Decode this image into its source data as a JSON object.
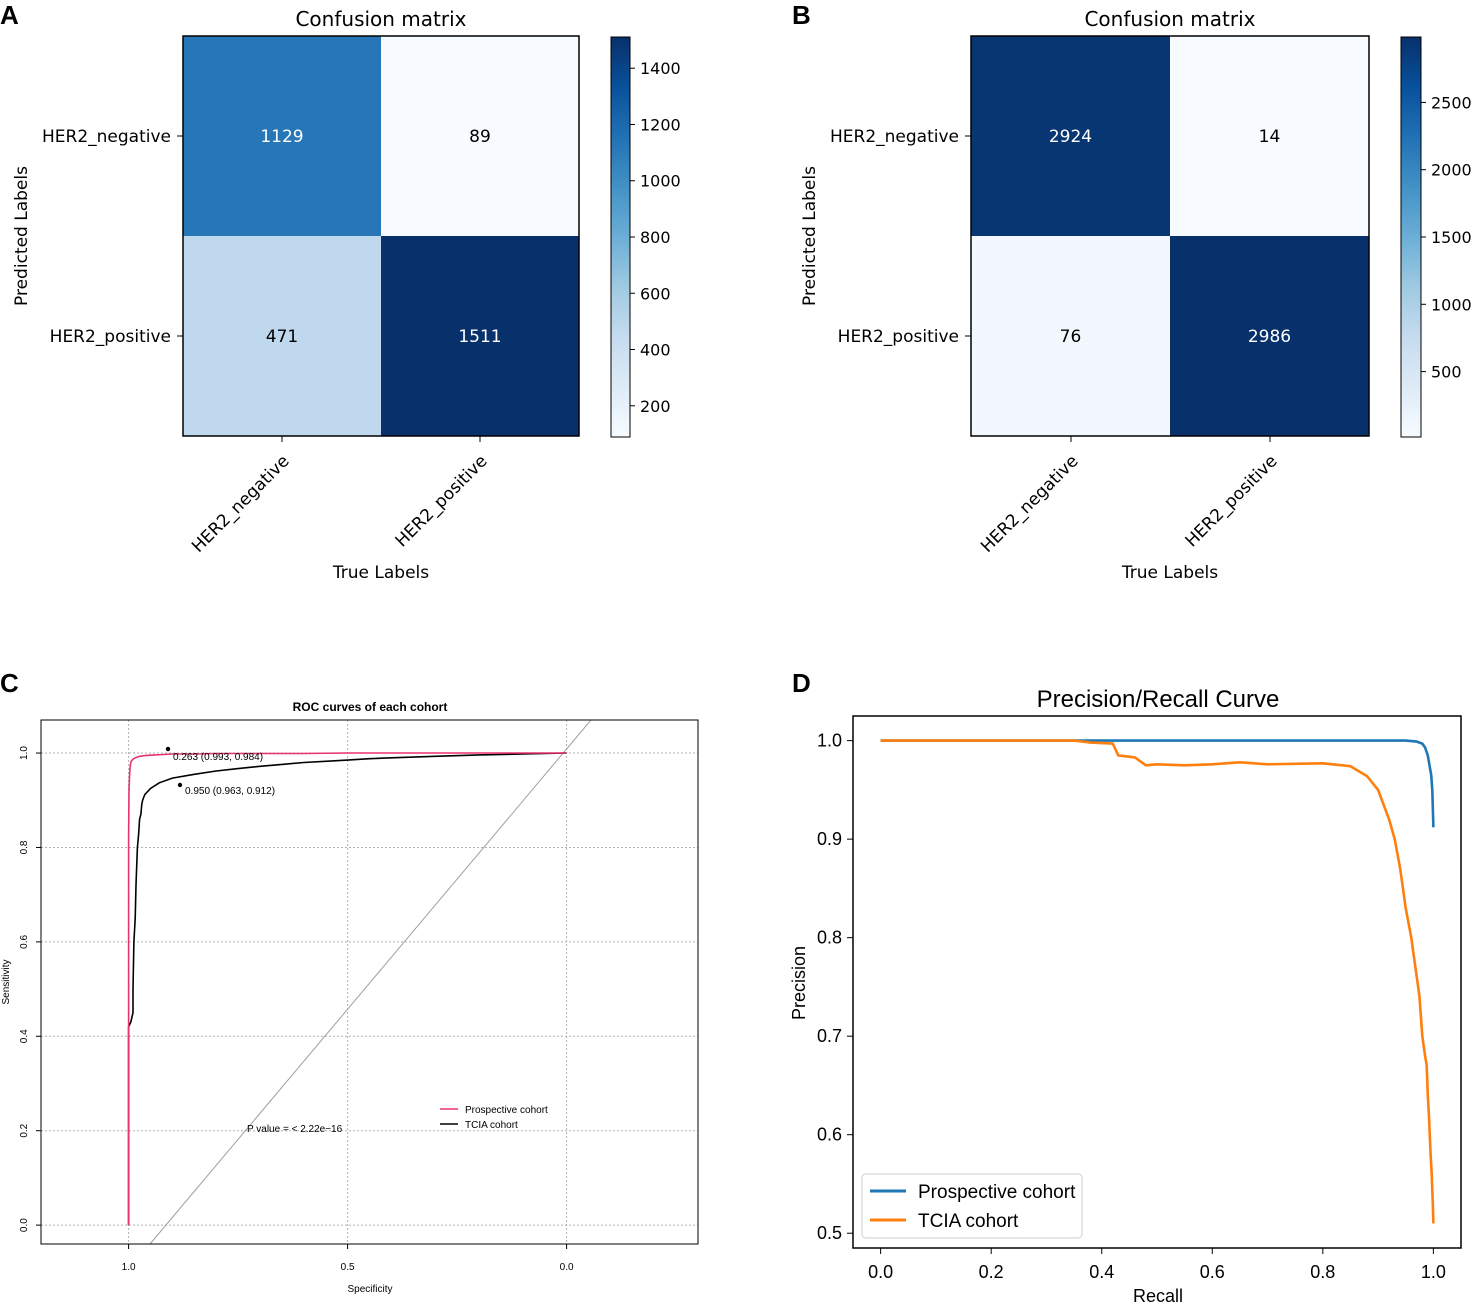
{
  "panels": {
    "A": "A",
    "B": "B",
    "C": "C",
    "D": "D"
  },
  "colors": {
    "blues_low": "#f7fbff",
    "blues_high": "#08306b",
    "prospective_roc": "#e8336d",
    "tcia_roc": "#000000",
    "prospective_pr": "#1f77b4",
    "tcia_pr": "#ff7f0e",
    "grid": "#b0b0b0",
    "diagonal": "#a0a0a0"
  },
  "chart_data": [
    {
      "id": "A",
      "type": "heatmap",
      "title": "Confusion matrix",
      "xlabel": "True Labels",
      "ylabel": "Predicted Labels",
      "x_categories": [
        "HER2_negative",
        "HER2_positive"
      ],
      "y_categories": [
        "HER2_negative",
        "HER2_positive"
      ],
      "values": [
        [
          1129,
          89
        ],
        [
          471,
          1511
        ]
      ],
      "colorbar": {
        "min": 89,
        "max": 1511,
        "ticks": [
          200,
          400,
          600,
          800,
          1000,
          1200,
          1400
        ],
        "tick_labels": [
          "200",
          "400",
          "600",
          "800",
          "1000",
          "1200",
          "1400"
        ]
      }
    },
    {
      "id": "B",
      "type": "heatmap",
      "title": "Confusion matrix",
      "xlabel": "True Labels",
      "ylabel": "Predicted Labels",
      "x_categories": [
        "HER2_negative",
        "HER2_positive"
      ],
      "y_categories": [
        "HER2_negative",
        "HER2_positive"
      ],
      "values": [
        [
          2924,
          14
        ],
        [
          76,
          2986
        ]
      ],
      "colorbar": {
        "min": 14,
        "max": 2986,
        "ticks": [
          500,
          1000,
          1500,
          2000,
          2500
        ],
        "tick_labels": [
          "500",
          "1000",
          "1500",
          "2000",
          "2500"
        ]
      }
    },
    {
      "id": "C",
      "type": "line",
      "title": "ROC curves of each cohort",
      "xlabel": "Specificity",
      "ylabel": "Sensitivity",
      "xlim": [
        1.2,
        -0.3
      ],
      "ylim": [
        -0.04,
        1.07
      ],
      "x_ticks": [
        1.0,
        0.5,
        0.0
      ],
      "x_tick_labels": [
        "1.0",
        "0.5",
        "0.0"
      ],
      "y_ticks": [
        0.0,
        0.2,
        0.4,
        0.6,
        0.8,
        1.0
      ],
      "y_tick_labels": [
        "0.0",
        "0.2",
        "0.4",
        "0.6",
        "0.8",
        "1.0"
      ],
      "grid": true,
      "series": [
        {
          "name": "Prospective cohort",
          "specificity": [
            1.0,
            1.0,
            1.0,
            0.999,
            0.998,
            0.997,
            0.996,
            0.995,
            0.994,
            0.993,
            0.99,
            0.985,
            0.975,
            0.96,
            0.94,
            0.92,
            0.9,
            0.85,
            0.8,
            0.7,
            0.6,
            0.5,
            0.4,
            0.3,
            0.2,
            0.1,
            0.0
          ],
          "sensitivity": [
            0.0,
            0.4,
            0.82,
            0.92,
            0.95,
            0.965,
            0.975,
            0.98,
            0.982,
            0.984,
            0.987,
            0.99,
            0.993,
            0.995,
            0.996,
            0.997,
            0.998,
            0.998,
            0.999,
            0.999,
            0.999,
            1.0,
            1.0,
            1.0,
            1.0,
            1.0,
            1.0
          ]
        },
        {
          "name": "TCIA cohort",
          "specificity": [
            1.0,
            1.0,
            1.0,
            0.995,
            0.99,
            0.99,
            0.988,
            0.985,
            0.983,
            0.98,
            0.977,
            0.975,
            0.972,
            0.97,
            0.968,
            0.966,
            0.963,
            0.95,
            0.93,
            0.9,
            0.85,
            0.8,
            0.75,
            0.7,
            0.65,
            0.6,
            0.5,
            0.45,
            0.4,
            0.3,
            0.2,
            0.1,
            0.0
          ],
          "sensitivity": [
            0.0,
            0.35,
            0.42,
            0.43,
            0.45,
            0.5,
            0.6,
            0.65,
            0.72,
            0.8,
            0.83,
            0.86,
            0.87,
            0.89,
            0.9,
            0.905,
            0.912,
            0.925,
            0.937,
            0.947,
            0.955,
            0.962,
            0.967,
            0.972,
            0.976,
            0.98,
            0.985,
            0.988,
            0.99,
            0.993,
            0.996,
            0.998,
            1.0
          ]
        }
      ],
      "annotations": [
        {
          "text": "0.263 (0.993, 0.984)",
          "x": 0.993,
          "y": 0.984
        },
        {
          "text": "0.950 (0.963, 0.912)",
          "x": 0.963,
          "y": 0.912
        },
        {
          "text": "P value = < 2.22e−16",
          "x": 0.5,
          "y": 0.2
        }
      ],
      "legend": {
        "placement": "bottom-right",
        "entries": [
          "Prospective cohort",
          "TCIA cohort"
        ]
      }
    },
    {
      "id": "D",
      "type": "line",
      "title": "Precision/Recall Curve",
      "xlabel": "Recall",
      "ylabel": "Precision",
      "xlim": [
        -0.05,
        1.05
      ],
      "ylim": [
        0.485,
        1.025
      ],
      "x_ticks": [
        0.0,
        0.2,
        0.4,
        0.6,
        0.8,
        1.0
      ],
      "x_tick_labels": [
        "0.0",
        "0.2",
        "0.4",
        "0.6",
        "0.8",
        "1.0"
      ],
      "y_ticks": [
        0.5,
        0.6,
        0.7,
        0.8,
        0.9,
        1.0
      ],
      "y_tick_labels": [
        "0.5",
        "0.6",
        "0.7",
        "0.8",
        "0.9",
        "1.0"
      ],
      "grid": false,
      "series": [
        {
          "name": "Prospective cohort",
          "recall": [
            0.0,
            0.2,
            0.4,
            0.6,
            0.8,
            0.95,
            0.97,
            0.98,
            0.985,
            0.99,
            0.993,
            0.996,
            0.998,
            1.0
          ],
          "precision": [
            1.0,
            1.0,
            1.0,
            1.0,
            1.0,
            1.0,
            0.999,
            0.997,
            0.993,
            0.985,
            0.975,
            0.965,
            0.95,
            0.912
          ]
        },
        {
          "name": "TCIA cohort",
          "recall": [
            0.0,
            0.2,
            0.35,
            0.38,
            0.42,
            0.43,
            0.46,
            0.48,
            0.5,
            0.55,
            0.6,
            0.65,
            0.7,
            0.8,
            0.85,
            0.88,
            0.9,
            0.92,
            0.93,
            0.94,
            0.95,
            0.96,
            0.965,
            0.97,
            0.975,
            0.98,
            0.985,
            0.988,
            0.99,
            0.992,
            0.995,
            0.997,
            0.999,
            1.0
          ],
          "precision": [
            1.0,
            1.0,
            1.0,
            0.998,
            0.997,
            0.985,
            0.983,
            0.975,
            0.976,
            0.975,
            0.976,
            0.978,
            0.976,
            0.977,
            0.974,
            0.964,
            0.95,
            0.92,
            0.9,
            0.87,
            0.83,
            0.8,
            0.78,
            0.76,
            0.74,
            0.7,
            0.68,
            0.67,
            0.64,
            0.62,
            0.58,
            0.56,
            0.53,
            0.51
          ]
        }
      ],
      "legend": {
        "placement": "bottom-left",
        "entries": [
          "Prospective cohort",
          "TCIA cohort"
        ]
      }
    }
  ]
}
